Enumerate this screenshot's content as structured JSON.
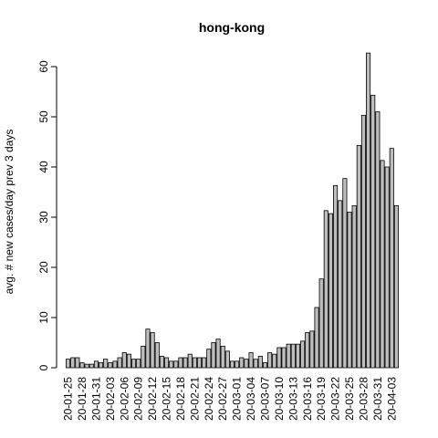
{
  "chart_data": {
    "type": "bar",
    "title": "hong-kong",
    "y_label": "avg. # new cases/day prev  3  days",
    "categories": [
      "20-01-25",
      null,
      null,
      "20-01-28",
      null,
      null,
      "20-01-31",
      null,
      null,
      "20-02-03",
      null,
      null,
      "20-02-06",
      null,
      null,
      "20-02-09",
      null,
      null,
      "20-02-12",
      null,
      null,
      "20-02-15",
      null,
      null,
      "20-02-18",
      null,
      null,
      "20-02-21",
      null,
      null,
      "20-02-24",
      null,
      null,
      "20-02-27",
      null,
      null,
      "20-03-01",
      null,
      null,
      "20-03-04",
      null,
      null,
      "20-03-07",
      null,
      null,
      "20-03-10",
      null,
      null,
      "20-03-13",
      null,
      null,
      "20-03-16",
      null,
      null,
      "20-03-19",
      null,
      null,
      "20-03-22",
      null,
      null,
      "20-03-25",
      null,
      null,
      "20-03-28",
      null,
      null,
      "20-03-31",
      null,
      null,
      "20-04-03",
      null
    ],
    "values": [
      1.7,
      2,
      2,
      1,
      0.7,
      0.7,
      1.3,
      1,
      1.7,
      1,
      1.3,
      2,
      3,
      2.7,
      1.7,
      1.7,
      4.3,
      7.7,
      7,
      5,
      2.3,
      2,
      1.3,
      1.3,
      2,
      2,
      2.7,
      2,
      2,
      2,
      3.7,
      5,
      5.7,
      4.3,
      3.3,
      1.3,
      1.3,
      2,
      1.7,
      3,
      1.7,
      2.3,
      1,
      3,
      2.7,
      4,
      4,
      4.7,
      4.7,
      4.7,
      5.3,
      7,
      7.3,
      12,
      17.7,
      31.3,
      30.7,
      36.3,
      33.3,
      37.7,
      31,
      32.3,
      44.3,
      50.3,
      62.7,
      54.3,
      51,
      41.3,
      40,
      43.7,
      32.3
    ],
    "color": "#bebebe",
    "ylim": [
      0,
      63
    ],
    "yticks": [
      0,
      10,
      20,
      30,
      40,
      50,
      60
    ]
  }
}
